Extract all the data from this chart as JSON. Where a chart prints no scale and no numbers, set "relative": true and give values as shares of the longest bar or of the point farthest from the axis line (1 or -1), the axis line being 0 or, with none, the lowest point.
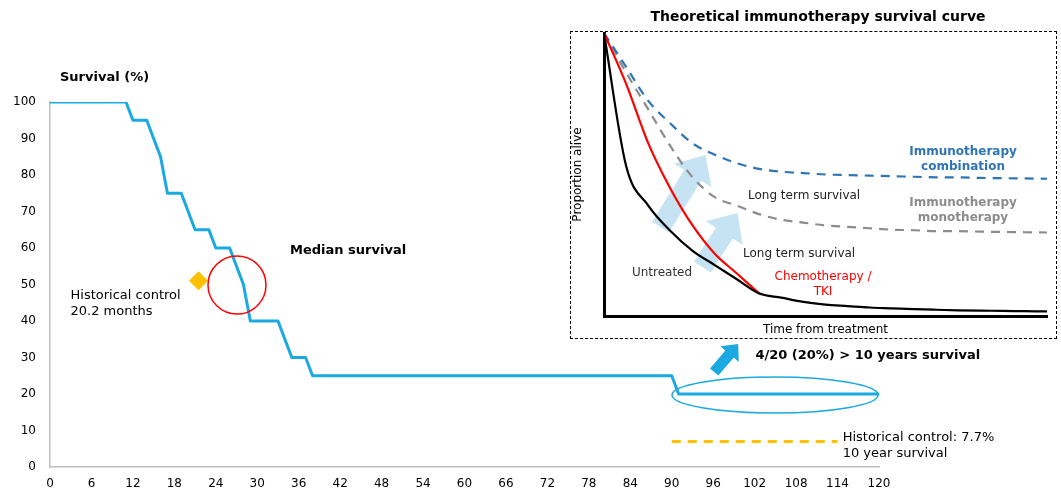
{
  "chart_data": [
    {
      "type": "line",
      "ylabel": "Survival (%)",
      "xlim": [
        0,
        120
      ],
      "xticks": [
        0,
        6,
        12,
        18,
        24,
        30,
        36,
        42,
        48,
        54,
        60,
        66,
        72,
        78,
        84,
        90,
        96,
        102,
        108,
        114,
        120
      ],
      "ylim": [
        0,
        100
      ],
      "yticks": [
        0,
        10,
        20,
        30,
        40,
        50,
        60,
        70,
        80,
        90,
        100
      ],
      "legend": false,
      "marker": "none",
      "series": [
        {
          "color": "#1ba9e1",
          "x": [
            0,
            11,
            12,
            14,
            16,
            17,
            19,
            21,
            23,
            24,
            26,
            28,
            29,
            33,
            35,
            37,
            38,
            90,
            91,
            120
          ],
          "values": [
            100,
            100,
            95,
            95,
            85,
            75,
            75,
            65,
            65,
            60,
            60,
            50,
            40,
            40,
            30,
            30,
            25,
            25,
            20,
            20
          ]
        },
        {
          "type": "scatter",
          "color": "#ffc000",
          "marker": "diamond",
          "x": [
            21.5
          ],
          "values": [
            51
          ]
        },
        {
          "type": "line",
          "color": "#ffc000",
          "line_style": "dashed",
          "x": [
            90,
            114
          ],
          "values": [
            7,
            7
          ]
        }
      ],
      "annotations": [
        "Median survival",
        {
          "text": "Historical control\n20.2 months",
          "x": 21.5,
          "y": 51
        },
        {
          "text": "4/20 (20%) > 10 years survival",
          "x": 105,
          "y": 20
        },
        {
          "text": "Historical control: 7.7%\n10 year survival",
          "x": 113,
          "y": 7
        }
      ]
    },
    {
      "type": "line",
      "relative": true,
      "title": "Theoretical immunotherapy survival curve",
      "xlabel": "Time from treatment",
      "ylabel": "Proportion alive",
      "legend": false,
      "marker": "none",
      "categories": [
        null,
        null,
        null,
        null,
        null,
        null,
        null,
        null,
        null,
        null,
        null,
        null,
        null,
        null,
        null,
        null,
        null,
        null,
        null,
        null,
        null
      ],
      "series": [
        {
          "name": "Untreated",
          "color": "#000000",
          "values": [
            1,
            0.53,
            0.39,
            0.3,
            0.23,
            0.18,
            0.13,
            0.08,
            0.065,
            0.05,
            0.04,
            0.035,
            0.03,
            0.027,
            0.024,
            0.022,
            0.02,
            0.019,
            0.018,
            0.017,
            0.016
          ]
        },
        {
          "name": "Chemotherapy / TKI",
          "color": "#ff0000",
          "values": [
            1,
            0.82,
            0.61,
            0.45,
            0.32,
            0.22,
            0.15,
            0.08,
            null,
            null,
            null,
            null,
            null,
            null,
            null,
            null,
            null,
            null,
            null,
            null,
            null
          ]
        },
        {
          "name": "Immunotherapy combination",
          "color": "#2e75b6",
          "line_style": "dashed",
          "values": [
            1,
            0.88,
            0.76,
            0.68,
            0.61,
            0.57,
            0.54,
            0.52,
            0.51,
            0.505,
            0.5,
            0.498,
            0.496,
            0.494,
            0.492,
            0.49,
            0.49,
            0.488,
            0.487,
            0.486,
            0.485
          ]
        },
        {
          "name": "Immunotherapy monotherapy",
          "color": "#8c8c8c",
          "line_style": "dashed",
          "values": [
            1,
            0.86,
            0.73,
            0.6,
            0.49,
            0.42,
            0.39,
            0.36,
            0.34,
            0.33,
            0.32,
            0.315,
            0.31,
            0.305,
            0.303,
            0.3,
            0.3,
            0.298,
            0.297,
            0.296,
            0.295
          ]
        }
      ],
      "annotations": [
        "Long term survival",
        "Long term survival"
      ]
    }
  ]
}
